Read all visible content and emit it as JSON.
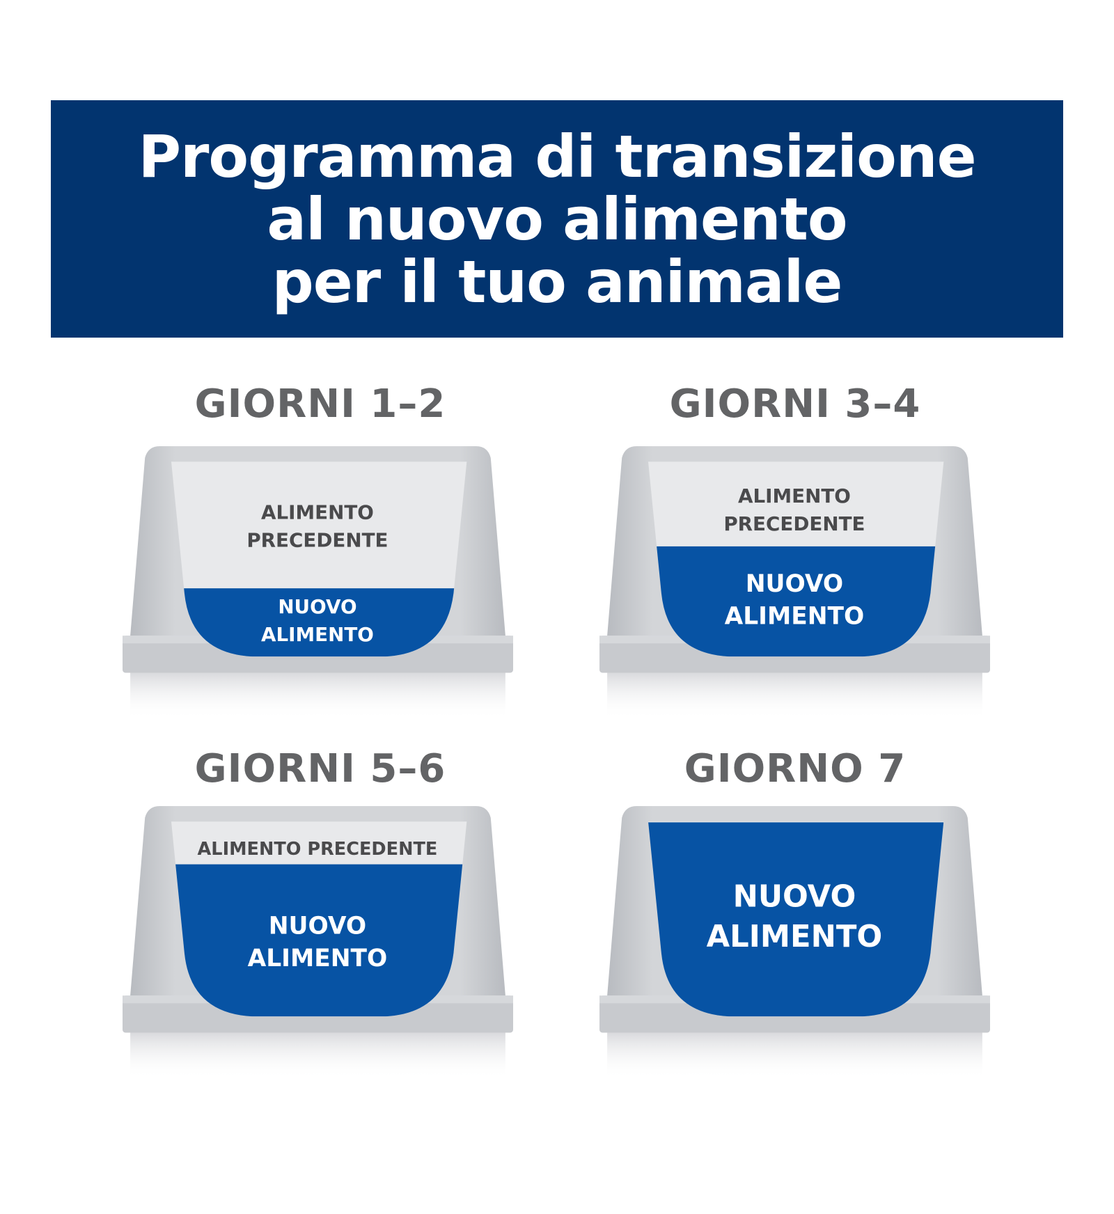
{
  "title": {
    "lines": [
      "Programma di transizione",
      "al nuovo alimento",
      "per il tuo animale"
    ]
  },
  "colors": {
    "banner": "#02346f",
    "new_food": "#0753a4",
    "old_food": "#e8e9eb",
    "bowl": "#c4c7cc",
    "heading": "#636466"
  },
  "steps": [
    {
      "heading": "GIORNI 1–2",
      "old_lines": [
        "ALIMENTO",
        "PRECEDENTE"
      ],
      "new_lines": [
        "NUOVO",
        "ALIMENTO"
      ],
      "new_food_share": 0.25
    },
    {
      "heading": "GIORNI 3–4",
      "old_lines": [
        "ALIMENTO",
        "PRECEDENTE"
      ],
      "new_lines": [
        "NUOVO",
        "ALIMENTO"
      ],
      "new_food_share": 0.5
    },
    {
      "heading": "GIORNI 5–6",
      "old_lines": [
        "ALIMENTO PRECEDENTE"
      ],
      "new_lines": [
        "NUOVO",
        "ALIMENTO"
      ],
      "new_food_share": 0.75
    },
    {
      "heading": "GIORNO 7",
      "old_lines": [],
      "new_lines": [
        "NUOVO",
        "ALIMENTO"
      ],
      "new_food_share": 1.0
    }
  ]
}
